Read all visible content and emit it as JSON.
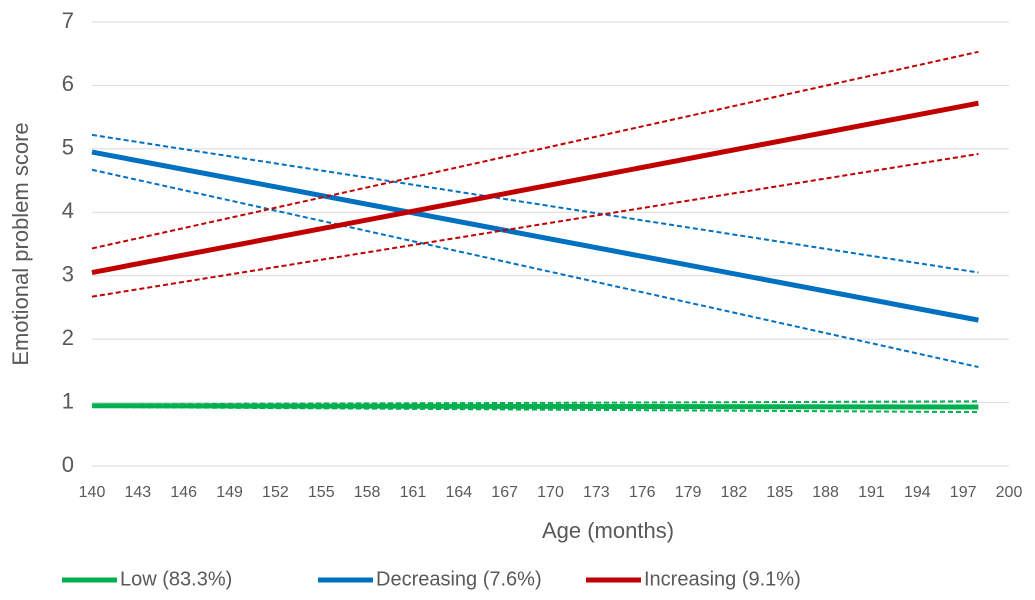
{
  "chart_data": {
    "type": "line",
    "x_label": "Age (months)",
    "y_label": "Emotional problem score",
    "x": [
      140,
      198
    ],
    "series": [
      {
        "name": "Low (83.3%)",
        "color": "#00b050",
        "values": [
          0.95,
          0.93
        ],
        "lower": [
          0.93,
          0.85
        ],
        "upper": [
          0.97,
          1.02
        ]
      },
      {
        "name": "Decreasing (7.6%)",
        "color": "#0070c0",
        "values": [
          4.95,
          2.3
        ],
        "lower": [
          4.67,
          1.56
        ],
        "upper": [
          5.22,
          3.05
        ]
      },
      {
        "name": "Increasing (9.1%)",
        "color": "#c00000",
        "values": [
          3.05,
          5.72
        ],
        "lower": [
          2.67,
          4.92
        ],
        "upper": [
          3.43,
          6.53
        ]
      }
    ],
    "xlim": [
      140,
      200
    ],
    "xticks": [
      140,
      143,
      146,
      149,
      152,
      155,
      158,
      161,
      164,
      167,
      170,
      173,
      176,
      179,
      182,
      185,
      188,
      191,
      194,
      197,
      200
    ],
    "ylim": [
      0,
      7
    ],
    "yticks": [
      0,
      1,
      2,
      3,
      4,
      5,
      6,
      7
    ],
    "grid": true,
    "legend": "bottom"
  }
}
